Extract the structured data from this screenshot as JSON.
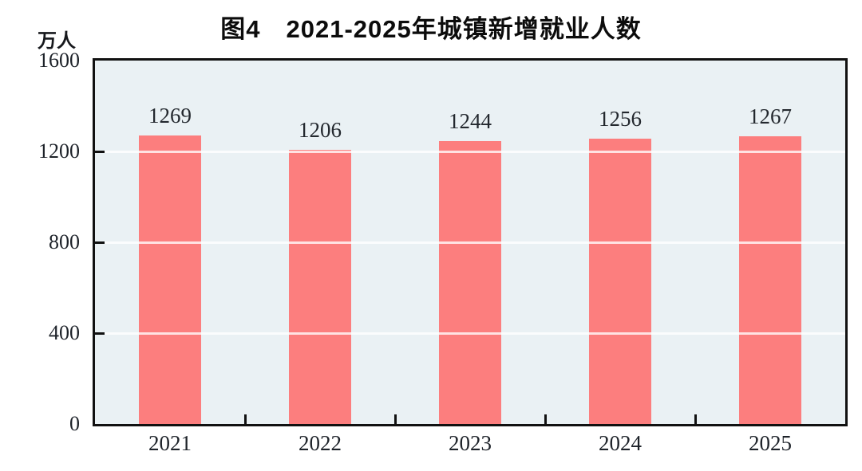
{
  "chart_data": {
    "type": "bar",
    "title": "图4　2021-2025年城镇新增就业人数",
    "unit_label": "万人",
    "xlabel": "",
    "ylabel": "万人",
    "categories": [
      "2021",
      "2022",
      "2023",
      "2024",
      "2025"
    ],
    "values": [
      1269,
      1206,
      1244,
      1256,
      1267
    ],
    "ylim": [
      0,
      1600
    ],
    "yticks": [
      0,
      400,
      800,
      1200,
      1600
    ],
    "grid": "horizontal",
    "legend_position": "none",
    "colors": {
      "bar_fill": "#FC7E7E",
      "plot_background": "#EAF1F4",
      "frame": "#111111",
      "gridline": "rgba(255,255,255,0.78)",
      "text": "#1d2229",
      "title_text": "#0c0c0c"
    }
  }
}
